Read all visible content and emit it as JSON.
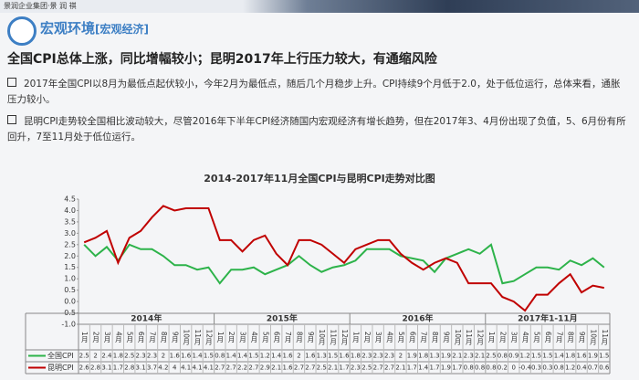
{
  "header": {
    "logo": "景润企业集团·景 润 祺",
    "section": "宏观环境",
    "subsection": "[宏观经济]"
  },
  "headline": "全国CPI总体上涨，同比增幅较小；昆明2017年上行压力较大，有通缩风险",
  "bullets": [
    "2017年全国CPI以8月为最低点起伏较小，今年2月为最低点，随后几个月稳步上升。CPI持续9个月低于2.0，处于低位运行，总体来看，通胀压力较小。",
    "昆明CPI走势较全国相比波动较大，尽管2016年下半年CPI经济随国内宏观经济有增长趋势，但在2017年3、4月份出现了负值，5、6月份有所回升，7至11月处于低位运行。"
  ],
  "chart_data": {
    "type": "line",
    "title": "2014-2017年11月全国CPI与昆明CPI走势对比图",
    "categories": [
      "1月",
      "2月",
      "3月",
      "4月",
      "5月",
      "6月",
      "7月",
      "8月",
      "9月",
      "10月",
      "11月",
      "12月",
      "1月",
      "2月",
      "3月",
      "4月",
      "5月",
      "6月",
      "7月",
      "8月",
      "9月",
      "10月",
      "11月",
      "12月",
      "1月",
      "2月",
      "3月",
      "4月",
      "5月",
      "6月",
      "7月",
      "8月",
      "9月",
      "10月",
      "11月",
      "12月",
      "1月",
      "2月",
      "3月",
      "4月",
      "5月",
      "6月",
      "7月",
      "8月",
      "9月",
      "10月",
      "11月"
    ],
    "groups": [
      "2014年",
      "2015年",
      "2016年",
      "2017年1-11月"
    ],
    "series": [
      {
        "name": "全国CPI",
        "color": "#2db34a",
        "values": [
          2.5,
          2.0,
          2.4,
          1.8,
          2.5,
          2.3,
          2.3,
          2.0,
          1.6,
          1.6,
          1.4,
          1.5,
          0.8,
          1.4,
          1.4,
          1.5,
          1.2,
          1.4,
          1.6,
          2.0,
          1.6,
          1.3,
          1.5,
          1.6,
          1.8,
          2.3,
          2.3,
          2.3,
          2.0,
          1.9,
          1.8,
          1.3,
          1.9,
          2.1,
          2.3,
          2.1,
          2.5,
          0.8,
          0.9,
          1.2,
          1.5,
          1.5,
          1.4,
          1.8,
          1.6,
          1.9,
          1.5
        ]
      },
      {
        "name": "昆明CPI",
        "color": "#c00000",
        "values": [
          2.6,
          2.8,
          3.1,
          1.7,
          2.8,
          3.1,
          3.7,
          4.2,
          4.0,
          4.1,
          4.1,
          4.1,
          2.7,
          2.7,
          2.2,
          2.7,
          2.9,
          2.1,
          1.6,
          2.7,
          2.7,
          2.5,
          2.1,
          1.7,
          2.3,
          2.5,
          2.7,
          2.7,
          2.1,
          1.7,
          1.4,
          1.7,
          1.9,
          1.7,
          0.8,
          0.8,
          0.8,
          0.2,
          0.0,
          -0.4,
          0.3,
          0.3,
          0.8,
          1.2,
          0.4,
          0.7,
          0.6
        ]
      }
    ],
    "ylim": [
      -1,
      4.5
    ],
    "yticks": [
      {
        "value": 4.5,
        "label": "4.5"
      },
      {
        "value": 4,
        "label": "4.0"
      },
      {
        "value": 3.5,
        "label": "3.5"
      },
      {
        "value": 3,
        "label": "3.0"
      },
      {
        "value": 2.5,
        "label": "2.5"
      },
      {
        "value": 2,
        "label": "2.0"
      },
      {
        "value": 1.5,
        "label": "1.5"
      },
      {
        "value": 1,
        "label": "1.0"
      },
      {
        "value": 0.5,
        "label": "0.5"
      },
      {
        "value": 0,
        "label": "0.0"
      },
      {
        "value": -0.5,
        "label": "-0.5"
      },
      {
        "value": -1,
        "label": "-1.0"
      }
    ]
  }
}
